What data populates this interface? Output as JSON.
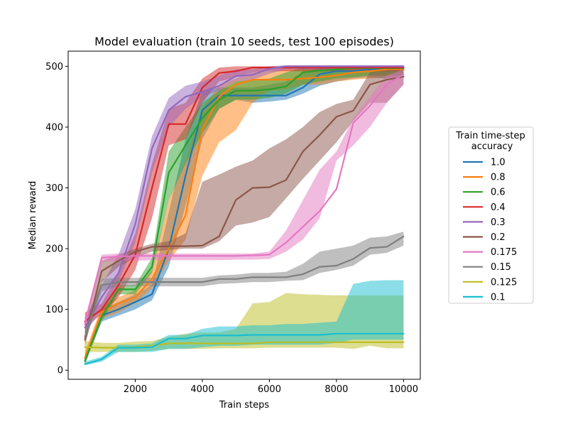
{
  "chart_data": {
    "type": "line",
    "title": "Model evaluation (train 10 seeds, test 100 episodes)",
    "xlabel": "Train steps",
    "ylabel": "Median reward",
    "xlim": [
      0,
      10500
    ],
    "ylim": [
      -15,
      525
    ],
    "xticks": [
      2000,
      4000,
      6000,
      8000,
      10000
    ],
    "yticks": [
      0,
      100,
      200,
      300,
      400,
      500
    ],
    "grid": false,
    "legend": {
      "title_line1": "Train time-step",
      "title_line2": " accuracy",
      "placement": "outside-right"
    },
    "x": [
      500,
      1000,
      1500,
      2000,
      2500,
      3000,
      3500,
      4000,
      4500,
      5000,
      5500,
      6000,
      6500,
      7000,
      7500,
      8000,
      8500,
      9000,
      9500,
      10000
    ],
    "series": [
      {
        "name": "1.0",
        "color": "#1f77b4",
        "values": [
          15,
          90,
          100,
          112,
          125,
          200,
          320,
          428,
          452,
          452,
          452,
          452,
          452,
          465,
          487,
          492,
          492,
          495,
          495,
          495
        ],
        "lower": [
          10,
          80,
          90,
          100,
          115,
          170,
          270,
          380,
          430,
          445,
          440,
          442,
          445,
          455,
          468,
          475,
          480,
          482,
          480,
          485
        ],
        "upper": [
          25,
          100,
          112,
          125,
          140,
          260,
          380,
          460,
          465,
          465,
          465,
          470,
          475,
          490,
          497,
          500,
          500,
          500,
          500,
          500
        ]
      },
      {
        "name": "0.8",
        "color": "#ff7f0e",
        "values": [
          20,
          95,
          110,
          120,
          150,
          200,
          255,
          396,
          450,
          470,
          478,
          478,
          478,
          480,
          482,
          485,
          490,
          492,
          495,
          495
        ],
        "lower": [
          10,
          85,
          95,
          110,
          135,
          180,
          215,
          320,
          375,
          395,
          440,
          460,
          462,
          470,
          470,
          475,
          478,
          480,
          482,
          485
        ],
        "upper": [
          30,
          105,
          120,
          132,
          165,
          280,
          345,
          430,
          470,
          480,
          490,
          492,
          495,
          495,
          495,
          498,
          500,
          500,
          500,
          500
        ]
      },
      {
        "name": "0.6",
        "color": "#2ca02c",
        "values": [
          15,
          88,
          133,
          133,
          170,
          325,
          370,
          415,
          445,
          460,
          460,
          462,
          467,
          490,
          493,
          495,
          497,
          497,
          497,
          497
        ],
        "lower": [
          10,
          80,
          125,
          125,
          160,
          280,
          340,
          390,
          430,
          445,
          445,
          448,
          455,
          470,
          475,
          480,
          482,
          485,
          485,
          485
        ],
        "upper": [
          25,
          95,
          140,
          140,
          185,
          360,
          400,
          440,
          460,
          475,
          478,
          480,
          490,
          498,
          500,
          500,
          500,
          500,
          500,
          500
        ]
      },
      {
        "name": "0.4",
        "color": "#d62728",
        "values": [
          80,
          100,
          140,
          190,
          300,
          405,
          405,
          465,
          489,
          492,
          498,
          498,
          498,
          498,
          498,
          498,
          498,
          498,
          498,
          498
        ],
        "lower": [
          70,
          92,
          120,
          165,
          250,
          370,
          380,
          440,
          475,
          482,
          490,
          492,
          492,
          492,
          492,
          492,
          492,
          492,
          492,
          492
        ],
        "upper": [
          95,
          110,
          160,
          225,
          340,
          430,
          440,
          480,
          498,
          500,
          500,
          500,
          500,
          500,
          500,
          500,
          500,
          500,
          500,
          500
        ]
      },
      {
        "name": "0.3",
        "color": "#9467bd",
        "values": [
          70,
          120,
          160,
          240,
          365,
          428,
          450,
          458,
          468,
          484,
          486,
          496,
          500,
          500,
          500,
          500,
          500,
          500,
          500,
          500
        ],
        "lower": [
          60,
          100,
          145,
          210,
          325,
          400,
          430,
          450,
          460,
          475,
          478,
          488,
          495,
          495,
          495,
          495,
          495,
          495,
          495,
          495
        ],
        "upper": [
          85,
          140,
          190,
          265,
          385,
          448,
          468,
          475,
          485,
          495,
          495,
          500,
          502,
          502,
          502,
          502,
          502,
          502,
          502,
          502
        ]
      },
      {
        "name": "0.2",
        "color": "#8c564b",
        "values": [
          50,
          163,
          180,
          195,
          203,
          204,
          204,
          205,
          220,
          280,
          300,
          301,
          313,
          360,
          387,
          417,
          427,
          470,
          478,
          483
        ],
        "lower": [
          40,
          145,
          170,
          185,
          195,
          198,
          200,
          200,
          212,
          238,
          243,
          252,
          283,
          315,
          345,
          375,
          410,
          440,
          440,
          470
        ],
        "upper": [
          65,
          180,
          190,
          200,
          208,
          212,
          225,
          310,
          322,
          335,
          345,
          365,
          380,
          400,
          425,
          438,
          445,
          490,
          495,
          495
        ]
      },
      {
        "name": "0.175",
        "color": "#e377c2",
        "values": [
          75,
          185,
          187,
          188,
          188,
          188,
          188,
          188,
          188,
          188,
          189,
          190,
          210,
          236,
          262,
          298,
          407,
          435,
          470,
          487
        ],
        "lower": [
          65,
          178,
          180,
          180,
          181,
          181,
          181,
          181,
          181,
          182,
          182,
          183,
          195,
          215,
          250,
          345,
          370,
          400,
          440,
          470
        ],
        "upper": [
          85,
          190,
          192,
          192,
          192,
          192,
          192,
          192,
          192,
          192,
          192,
          195,
          230,
          280,
          330,
          360,
          415,
          450,
          485,
          495
        ]
      },
      {
        "name": "0.15",
        "color": "#7f7f7f",
        "values": [
          55,
          140,
          145,
          145,
          145,
          145,
          145,
          145,
          150,
          150,
          153,
          153,
          153,
          158,
          170,
          172,
          183,
          201,
          203,
          220
        ],
        "lower": [
          45,
          130,
          138,
          138,
          138,
          138,
          138,
          138,
          142,
          143,
          145,
          145,
          147,
          148,
          160,
          165,
          172,
          190,
          193,
          205
        ],
        "upper": [
          65,
          150,
          152,
          152,
          152,
          152,
          152,
          152,
          156,
          157,
          160,
          160,
          162,
          175,
          195,
          200,
          205,
          218,
          220,
          228
        ]
      },
      {
        "name": "0.125",
        "color": "#bcbd22",
        "values": [
          38,
          37,
          37,
          38,
          40,
          44,
          44,
          44,
          44,
          44,
          44,
          46,
          46,
          46,
          46,
          46,
          46,
          46,
          46,
          46
        ],
        "lower": [
          30,
          30,
          30,
          30,
          32,
          35,
          35,
          35,
          36,
          36,
          36,
          37,
          37,
          37,
          37,
          37,
          35,
          40,
          36,
          36
        ],
        "upper": [
          48,
          45,
          45,
          47,
          48,
          55,
          60,
          62,
          62,
          68,
          110,
          112,
          127,
          125,
          124,
          123,
          123,
          123,
          123,
          123
        ]
      },
      {
        "name": "0.1",
        "color": "#17becf",
        "values": [
          10,
          18,
          37,
          37,
          38,
          52,
          52,
          57,
          57,
          57,
          58,
          58,
          58,
          58,
          58,
          60,
          60,
          60,
          60,
          60
        ],
        "lower": [
          8,
          14,
          30,
          30,
          30,
          35,
          35,
          38,
          40,
          40,
          42,
          42,
          42,
          42,
          42,
          45,
          50,
          50,
          50,
          50
        ],
        "upper": [
          14,
          22,
          42,
          42,
          44,
          58,
          58,
          68,
          72,
          72,
          74,
          74,
          76,
          76,
          78,
          80,
          142,
          147,
          148,
          148
        ]
      }
    ]
  }
}
